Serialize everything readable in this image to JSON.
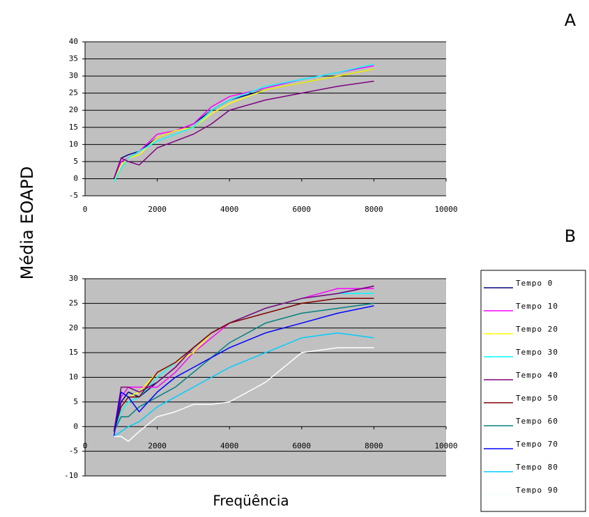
{
  "ylabel": "Média EOAPD",
  "xlabel": "Freqüência",
  "chart_data": [
    {
      "type": "line",
      "title": "A",
      "x": [
        800,
        1000,
        1200,
        1500,
        2000,
        2500,
        3000,
        3500,
        4000,
        5000,
        6000,
        7000,
        8000
      ],
      "series": [
        {
          "color": "#000080",
          "values": [
            0,
            6,
            7,
            8,
            12,
            14,
            16,
            20,
            23,
            26,
            28,
            30,
            32
          ]
        },
        {
          "color": "#ff00ff",
          "values": [
            0,
            5,
            6,
            8,
            13,
            14,
            16,
            21,
            24,
            26.5,
            29,
            31,
            33
          ]
        },
        {
          "color": "#ffff00",
          "values": [
            -1,
            4,
            6,
            7,
            12,
            14,
            15,
            19,
            22,
            26,
            28,
            30,
            32
          ]
        },
        {
          "color": "#00ffff",
          "values": [
            -1,
            3,
            6,
            8,
            11,
            13,
            15,
            20,
            23,
            27,
            29,
            31,
            33.5
          ]
        },
        {
          "color": "#800080",
          "values": [
            0,
            6,
            5,
            4,
            9,
            11,
            13,
            16,
            20,
            23,
            25,
            27,
            28.5
          ]
        }
      ],
      "xlim": [
        0,
        10000
      ],
      "xticks": [
        0,
        2000,
        4000,
        6000,
        8000,
        10000
      ],
      "ylim": [
        -5,
        40
      ],
      "yticks": [
        -5,
        0,
        5,
        10,
        15,
        20,
        25,
        30,
        35,
        40
      ],
      "grid": true
    },
    {
      "type": "line",
      "title": "B",
      "x": [
        800,
        1000,
        1200,
        1500,
        2000,
        2500,
        3000,
        3500,
        4000,
        5000,
        6000,
        7000,
        8000
      ],
      "series": [
        {
          "name": "Tempo 0",
          "color": "#000080",
          "values": [
            -1,
            5,
            7,
            6,
            9,
            12,
            16,
            19,
            21,
            24,
            26,
            27,
            28.5
          ]
        },
        {
          "name": "Tempo 10",
          "color": "#ff00ff",
          "values": [
            -1,
            6,
            8,
            8,
            8,
            11,
            15,
            18,
            21,
            24,
            26,
            28,
            28
          ]
        },
        {
          "name": "Tempo 20",
          "color": "#ffff00",
          "values": [
            -1,
            4,
            6,
            7,
            11,
            13,
            15,
            19,
            21,
            24,
            26,
            27,
            27
          ]
        },
        {
          "name": "Tempo 30",
          "color": "#00ffff",
          "values": [
            -1,
            3,
            5,
            6,
            10,
            13,
            16,
            19,
            21,
            24,
            26,
            27,
            27
          ]
        },
        {
          "name": "Tempo 40",
          "color": "#800080",
          "values": [
            -1,
            8,
            8,
            7,
            9,
            12,
            16,
            19,
            21,
            24,
            26,
            27,
            28.5
          ]
        },
        {
          "name": "Tempo 50",
          "color": "#800000",
          "values": [
            -1,
            4,
            6,
            6,
            11,
            13,
            16,
            19,
            21,
            23,
            25,
            26,
            26
          ]
        },
        {
          "name": "Tempo 60",
          "color": "#008080",
          "values": [
            -1,
            2,
            2,
            4,
            6,
            8,
            11,
            14,
            17,
            21,
            23,
            24,
            25
          ]
        },
        {
          "name": "Tempo 70",
          "color": "#0000ff",
          "values": [
            -2,
            7,
            6,
            3,
            7,
            10,
            12,
            14,
            16,
            19,
            21,
            23,
            24.5
          ]
        },
        {
          "name": "Tempo 80",
          "color": "#00ccff",
          "values": [
            -2,
            -1,
            0,
            1,
            4,
            6,
            8,
            10,
            12,
            15,
            18,
            19,
            18
          ]
        },
        {
          "name": "Tempo 90",
          "color": "#ffffff",
          "values": [
            -2,
            -2,
            -3,
            -1,
            2,
            3,
            4.5,
            4.5,
            5,
            9,
            15,
            16,
            16
          ]
        }
      ],
      "xlim": [
        0,
        10000
      ],
      "xticks": [
        0,
        2000,
        4000,
        6000,
        8000,
        10000
      ],
      "ylim": [
        -10,
        30
      ],
      "yticks": [
        -10,
        -5,
        0,
        5,
        10,
        15,
        20,
        25,
        30
      ],
      "grid": true
    }
  ]
}
